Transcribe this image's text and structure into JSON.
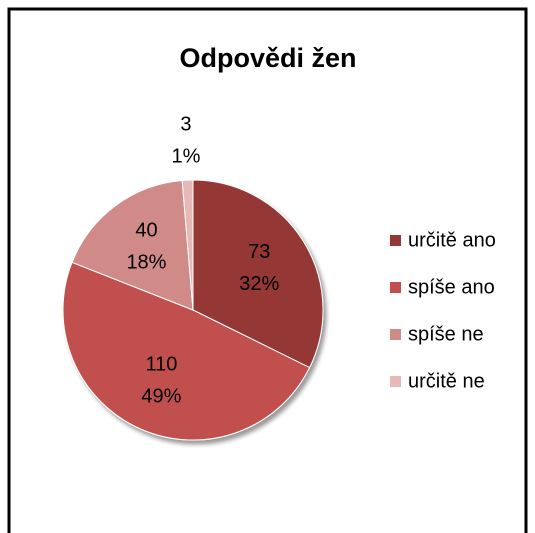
{
  "chart_data": {
    "type": "pie",
    "title": "Odpovědi žen",
    "categories": [
      "určitě ano",
      "spíše ano",
      "spíše ne",
      "určitě ne"
    ],
    "values": [
      73,
      110,
      40,
      3
    ],
    "value_labels": [
      "32%",
      "49%",
      "18%",
      "1%"
    ],
    "colors": [
      "#953735",
      "#c0504d",
      "#d08a88",
      "#e6b9b8"
    ],
    "legend": "right"
  }
}
